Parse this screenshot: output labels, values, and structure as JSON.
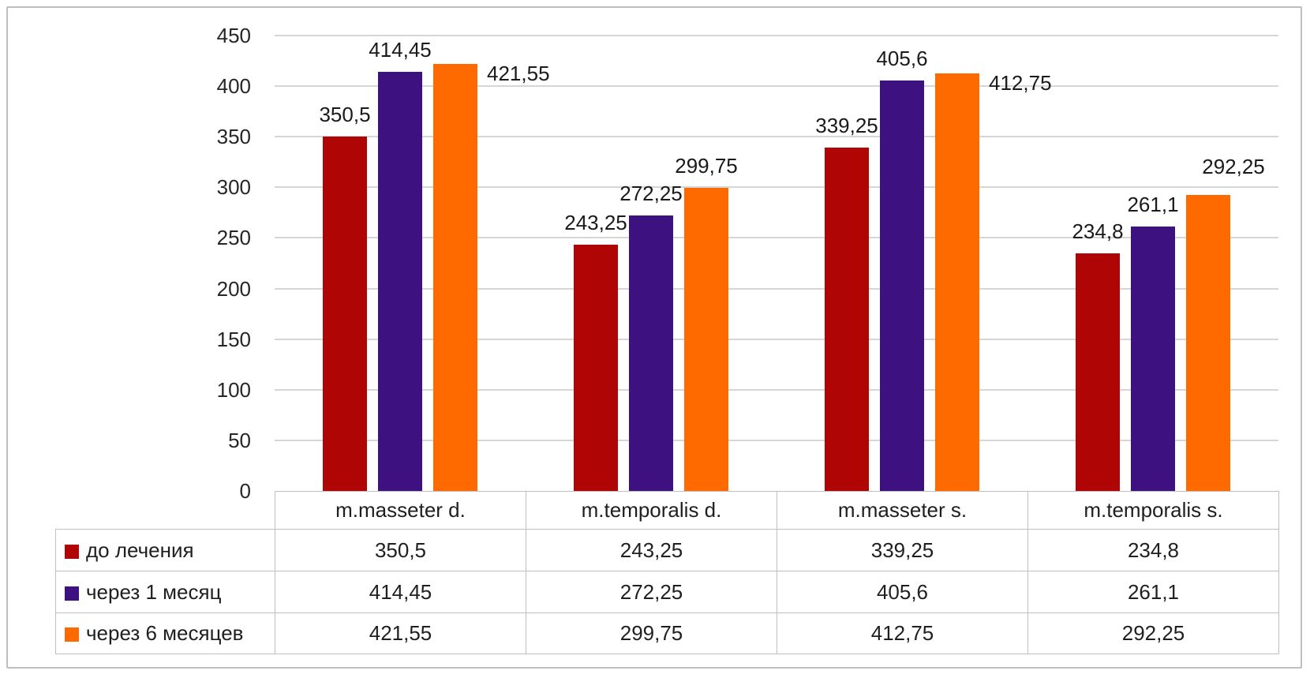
{
  "chart_data": {
    "type": "bar",
    "categories": [
      "m.masseter d.",
      "m.temporalis d.",
      "m.masseter s.",
      "m.temporalis s."
    ],
    "series": [
      {
        "name": "до лечения",
        "color": "#b00505",
        "values": [
          350.5,
          243.25,
          339.25,
          234.8
        ],
        "labels": [
          "350,5",
          "243,25",
          "339,25",
          "234,8"
        ]
      },
      {
        "name": "через 1 месяц",
        "color": "#3e1181",
        "values": [
          414.45,
          272.25,
          405.6,
          261.1
        ],
        "labels": [
          "414,45",
          "272,25",
          "405,6",
          "261,1"
        ]
      },
      {
        "name": "через 6 месяцев",
        "color": "#ff6a00",
        "values": [
          421.55,
          299.75,
          412.75,
          292.25
        ],
        "labels": [
          "421,55",
          "299,75",
          "412,75",
          "292,25"
        ],
        "label_placement": [
          "right",
          "above",
          "right",
          "above-right"
        ]
      }
    ],
    "ylim": [
      0,
      450
    ],
    "ytick_step": 50,
    "yticks": [
      0,
      50,
      100,
      150,
      200,
      250,
      300,
      350,
      400,
      450
    ],
    "grid": "horizontal",
    "legend_position": "data-table-left-column",
    "value_format": "decimal-comma"
  }
}
